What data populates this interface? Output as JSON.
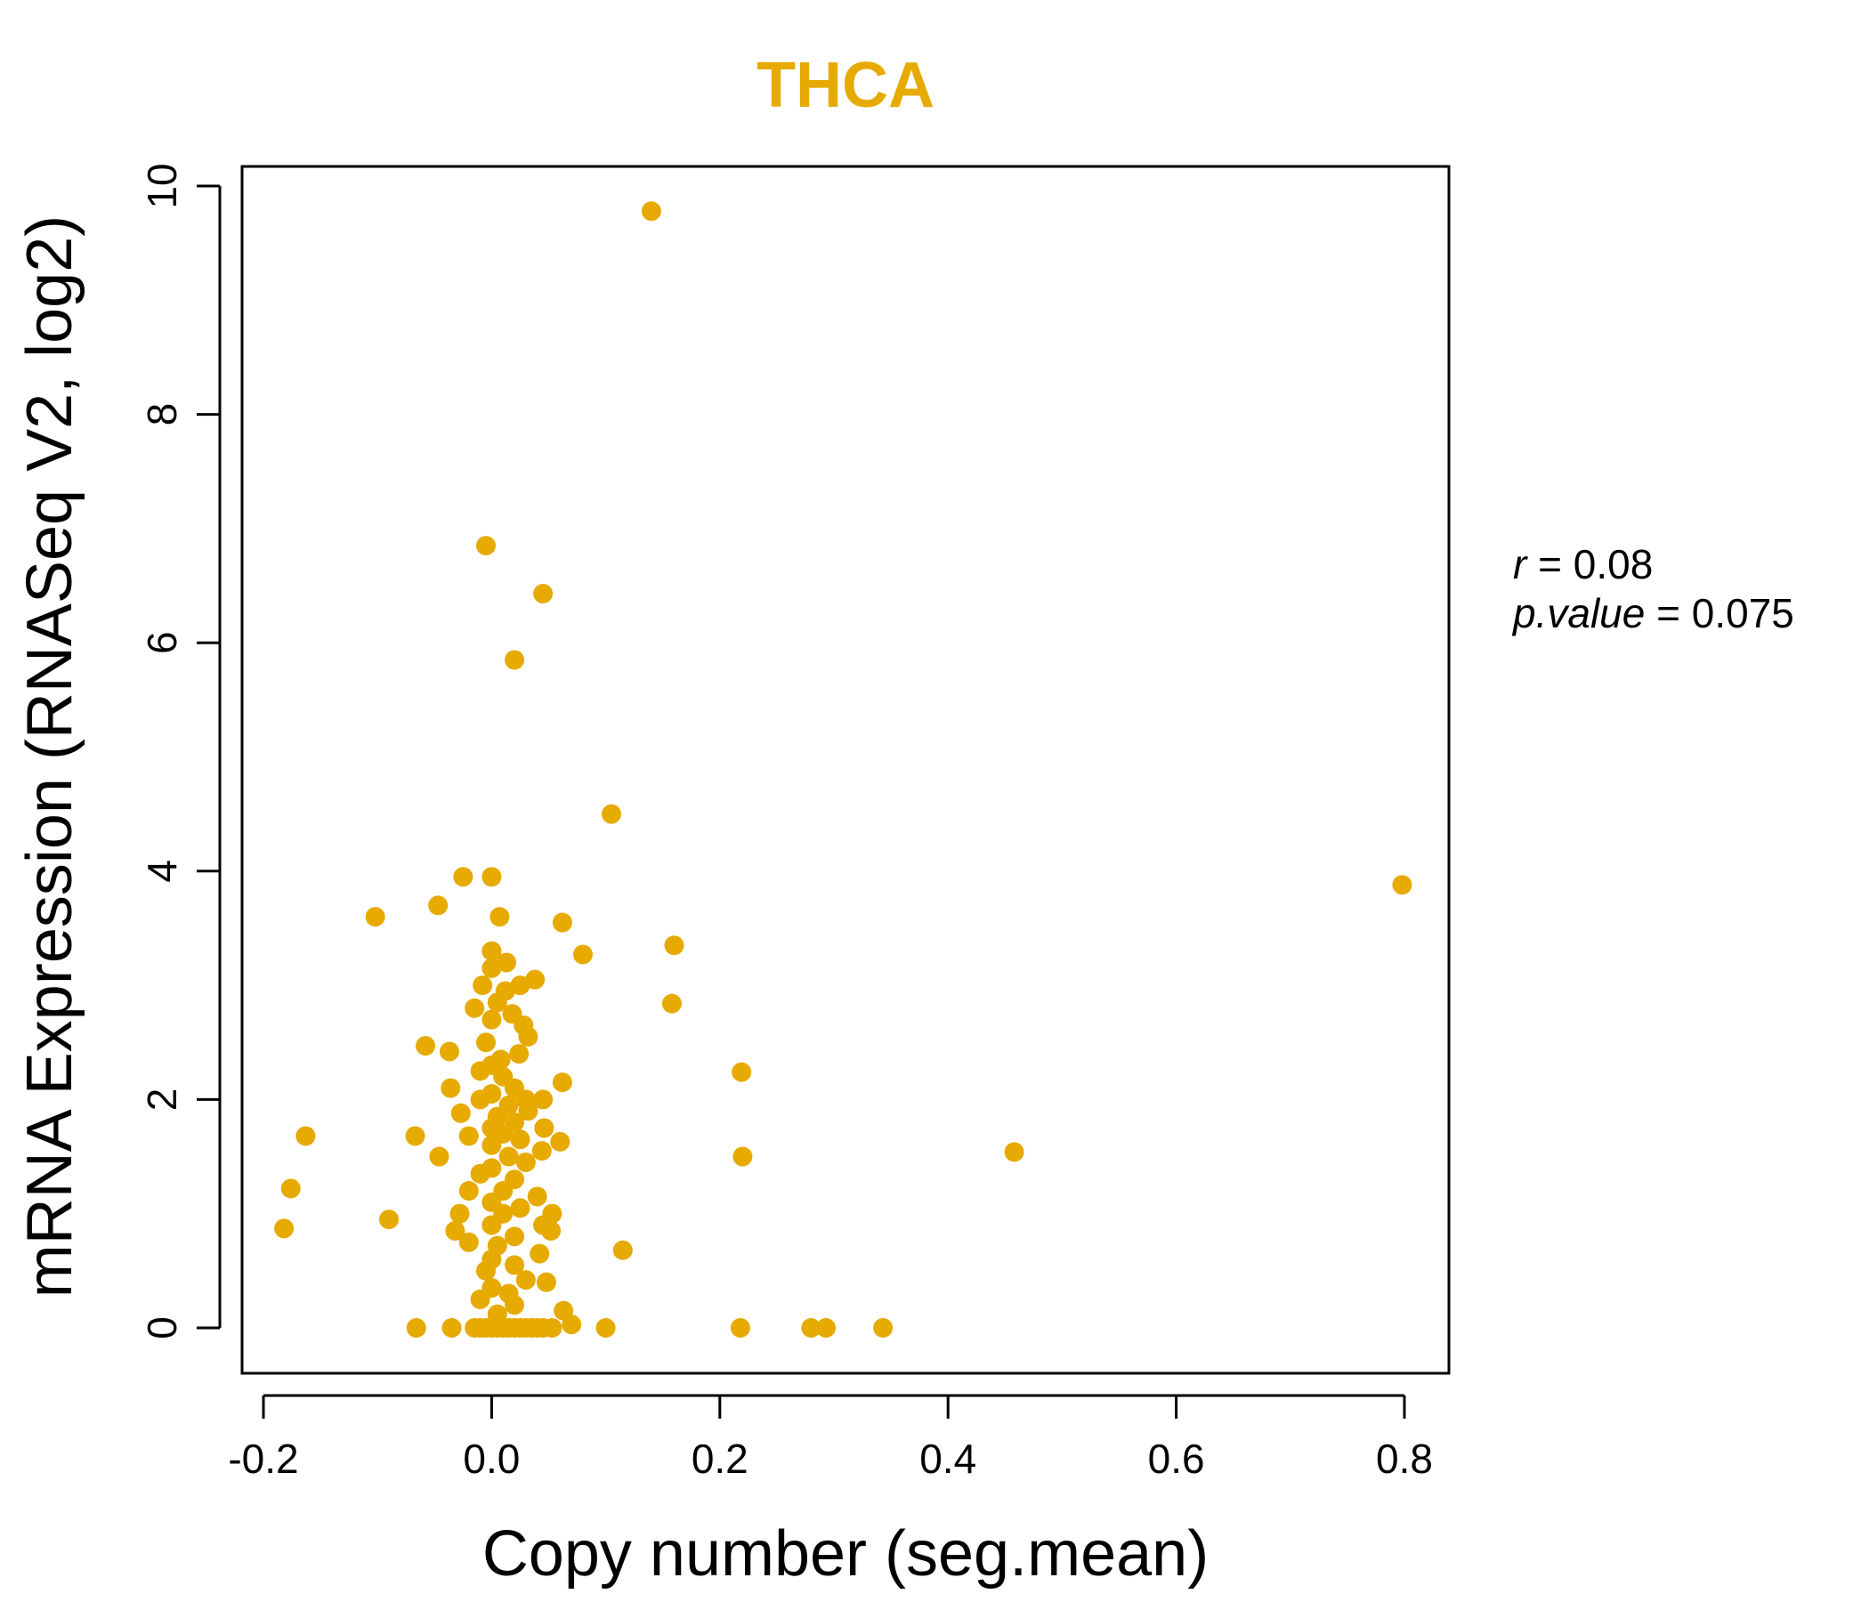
{
  "chart_data": {
    "type": "scatter",
    "title": "THCA",
    "xlabel": "Copy number (seg.mean)",
    "ylabel": "mRNA Expression (RNASeq V2, log2)",
    "xlim": [
      -0.2,
      0.8
    ],
    "ylim": [
      0,
      10
    ],
    "x_ticks": [
      -0.2,
      0.0,
      0.2,
      0.4,
      0.6,
      0.8
    ],
    "x_tick_labels": [
      "-0.2",
      "0.0",
      "0.2",
      "0.4",
      "0.6",
      "0.8"
    ],
    "y_ticks": [
      0,
      2,
      4,
      6,
      8,
      10
    ],
    "y_tick_labels": [
      "0",
      "2",
      "4",
      "6",
      "8",
      "10"
    ],
    "point_color": "#E6AA00",
    "title_color": "#E6AA00",
    "annotations": {
      "r_label": "r",
      "r_eq": " = ",
      "r_value": "0.08",
      "p_label": "p.value",
      "p_eq": " = ",
      "p_value": "0.075"
    },
    "points": [
      [
        0.14,
        9.78
      ],
      [
        -0.005,
        6.85
      ],
      [
        0.045,
        6.43
      ],
      [
        0.02,
        5.85
      ],
      [
        0.105,
        4.5
      ],
      [
        0.798,
        3.88
      ],
      [
        -0.025,
        3.95
      ],
      [
        0.0,
        3.95
      ],
      [
        -0.047,
        3.7
      ],
      [
        -0.102,
        3.6
      ],
      [
        0.007,
        3.6
      ],
      [
        0.062,
        3.55
      ],
      [
        0.16,
        3.35
      ],
      [
        0.08,
        3.27
      ],
      [
        0.0,
        3.3
      ],
      [
        0.013,
        3.2
      ],
      [
        0.0,
        3.15
      ],
      [
        0.038,
        3.05
      ],
      [
        0.025,
        3.0
      ],
      [
        -0.008,
        3.0
      ],
      [
        0.012,
        2.95
      ],
      [
        0.158,
        2.84
      ],
      [
        0.005,
        2.85
      ],
      [
        -0.015,
        2.8
      ],
      [
        0.018,
        2.75
      ],
      [
        0.0,
        2.7
      ],
      [
        0.028,
        2.65
      ],
      [
        0.032,
        2.55
      ],
      [
        -0.005,
        2.5
      ],
      [
        -0.058,
        2.47
      ],
      [
        -0.037,
        2.42
      ],
      [
        0.024,
        2.4
      ],
      [
        0.008,
        2.35
      ],
      [
        0.0,
        2.3
      ],
      [
        0.219,
        2.24
      ],
      [
        -0.01,
        2.25
      ],
      [
        0.01,
        2.2
      ],
      [
        0.062,
        2.15
      ],
      [
        -0.036,
        2.1
      ],
      [
        0.02,
        2.1
      ],
      [
        0.0,
        2.05
      ],
      [
        0.045,
        2.0
      ],
      [
        0.03,
        2.0
      ],
      [
        -0.01,
        2.0
      ],
      [
        0.015,
        1.95
      ],
      [
        -0.027,
        1.88
      ],
      [
        0.032,
        1.9
      ],
      [
        0.005,
        1.85
      ],
      [
        0.02,
        1.8
      ],
      [
        0.046,
        1.75
      ],
      [
        0.0,
        1.75
      ],
      [
        -0.163,
        1.68
      ],
      [
        -0.067,
        1.68
      ],
      [
        -0.02,
        1.68
      ],
      [
        0.01,
        1.7
      ],
      [
        0.06,
        1.63
      ],
      [
        0.025,
        1.65
      ],
      [
        0.0,
        1.6
      ],
      [
        0.044,
        1.55
      ],
      [
        0.458,
        1.54
      ],
      [
        0.22,
        1.5
      ],
      [
        -0.046,
        1.5
      ],
      [
        0.015,
        1.5
      ],
      [
        0.03,
        1.45
      ],
      [
        0.0,
        1.4
      ],
      [
        -0.01,
        1.35
      ],
      [
        0.02,
        1.3
      ],
      [
        -0.176,
        1.22
      ],
      [
        -0.02,
        1.2
      ],
      [
        0.01,
        1.2
      ],
      [
        0.04,
        1.15
      ],
      [
        0.0,
        1.1
      ],
      [
        0.025,
        1.05
      ],
      [
        0.053,
        1.0
      ],
      [
        -0.028,
        1.0
      ],
      [
        0.01,
        1.0
      ],
      [
        -0.09,
        0.95
      ],
      [
        0.045,
        0.9
      ],
      [
        0.0,
        0.9
      ],
      [
        -0.182,
        0.87
      ],
      [
        -0.032,
        0.85
      ],
      [
        0.052,
        0.85
      ],
      [
        0.02,
        0.8
      ],
      [
        -0.02,
        0.75
      ],
      [
        0.005,
        0.72
      ],
      [
        0.115,
        0.68
      ],
      [
        0.042,
        0.65
      ],
      [
        0.0,
        0.6
      ],
      [
        0.02,
        0.55
      ],
      [
        -0.005,
        0.5
      ],
      [
        0.03,
        0.42
      ],
      [
        0.048,
        0.4
      ],
      [
        0.0,
        0.35
      ],
      [
        0.015,
        0.3
      ],
      [
        -0.01,
        0.25
      ],
      [
        0.02,
        0.2
      ],
      [
        0.063,
        0.15
      ],
      [
        0.005,
        0.12
      ],
      [
        0.07,
        0.03
      ],
      [
        -0.066,
        0.0
      ],
      [
        -0.035,
        0.0
      ],
      [
        -0.015,
        0.0
      ],
      [
        -0.005,
        0.0
      ],
      [
        0.005,
        0.0
      ],
      [
        0.015,
        0.0
      ],
      [
        0.025,
        0.0
      ],
      [
        0.035,
        0.0
      ],
      [
        0.045,
        0.0
      ],
      [
        0.053,
        0.0
      ],
      [
        0.1,
        0.0
      ],
      [
        0.218,
        0.0
      ],
      [
        0.28,
        0.0
      ],
      [
        0.293,
        0.0
      ],
      [
        0.343,
        0.0
      ],
      [
        0.0,
        0.0
      ],
      [
        0.01,
        0.0
      ],
      [
        0.02,
        0.0
      ],
      [
        0.03,
        0.0
      ],
      [
        0.04,
        0.0
      ],
      [
        -0.01,
        0.0
      ]
    ]
  }
}
